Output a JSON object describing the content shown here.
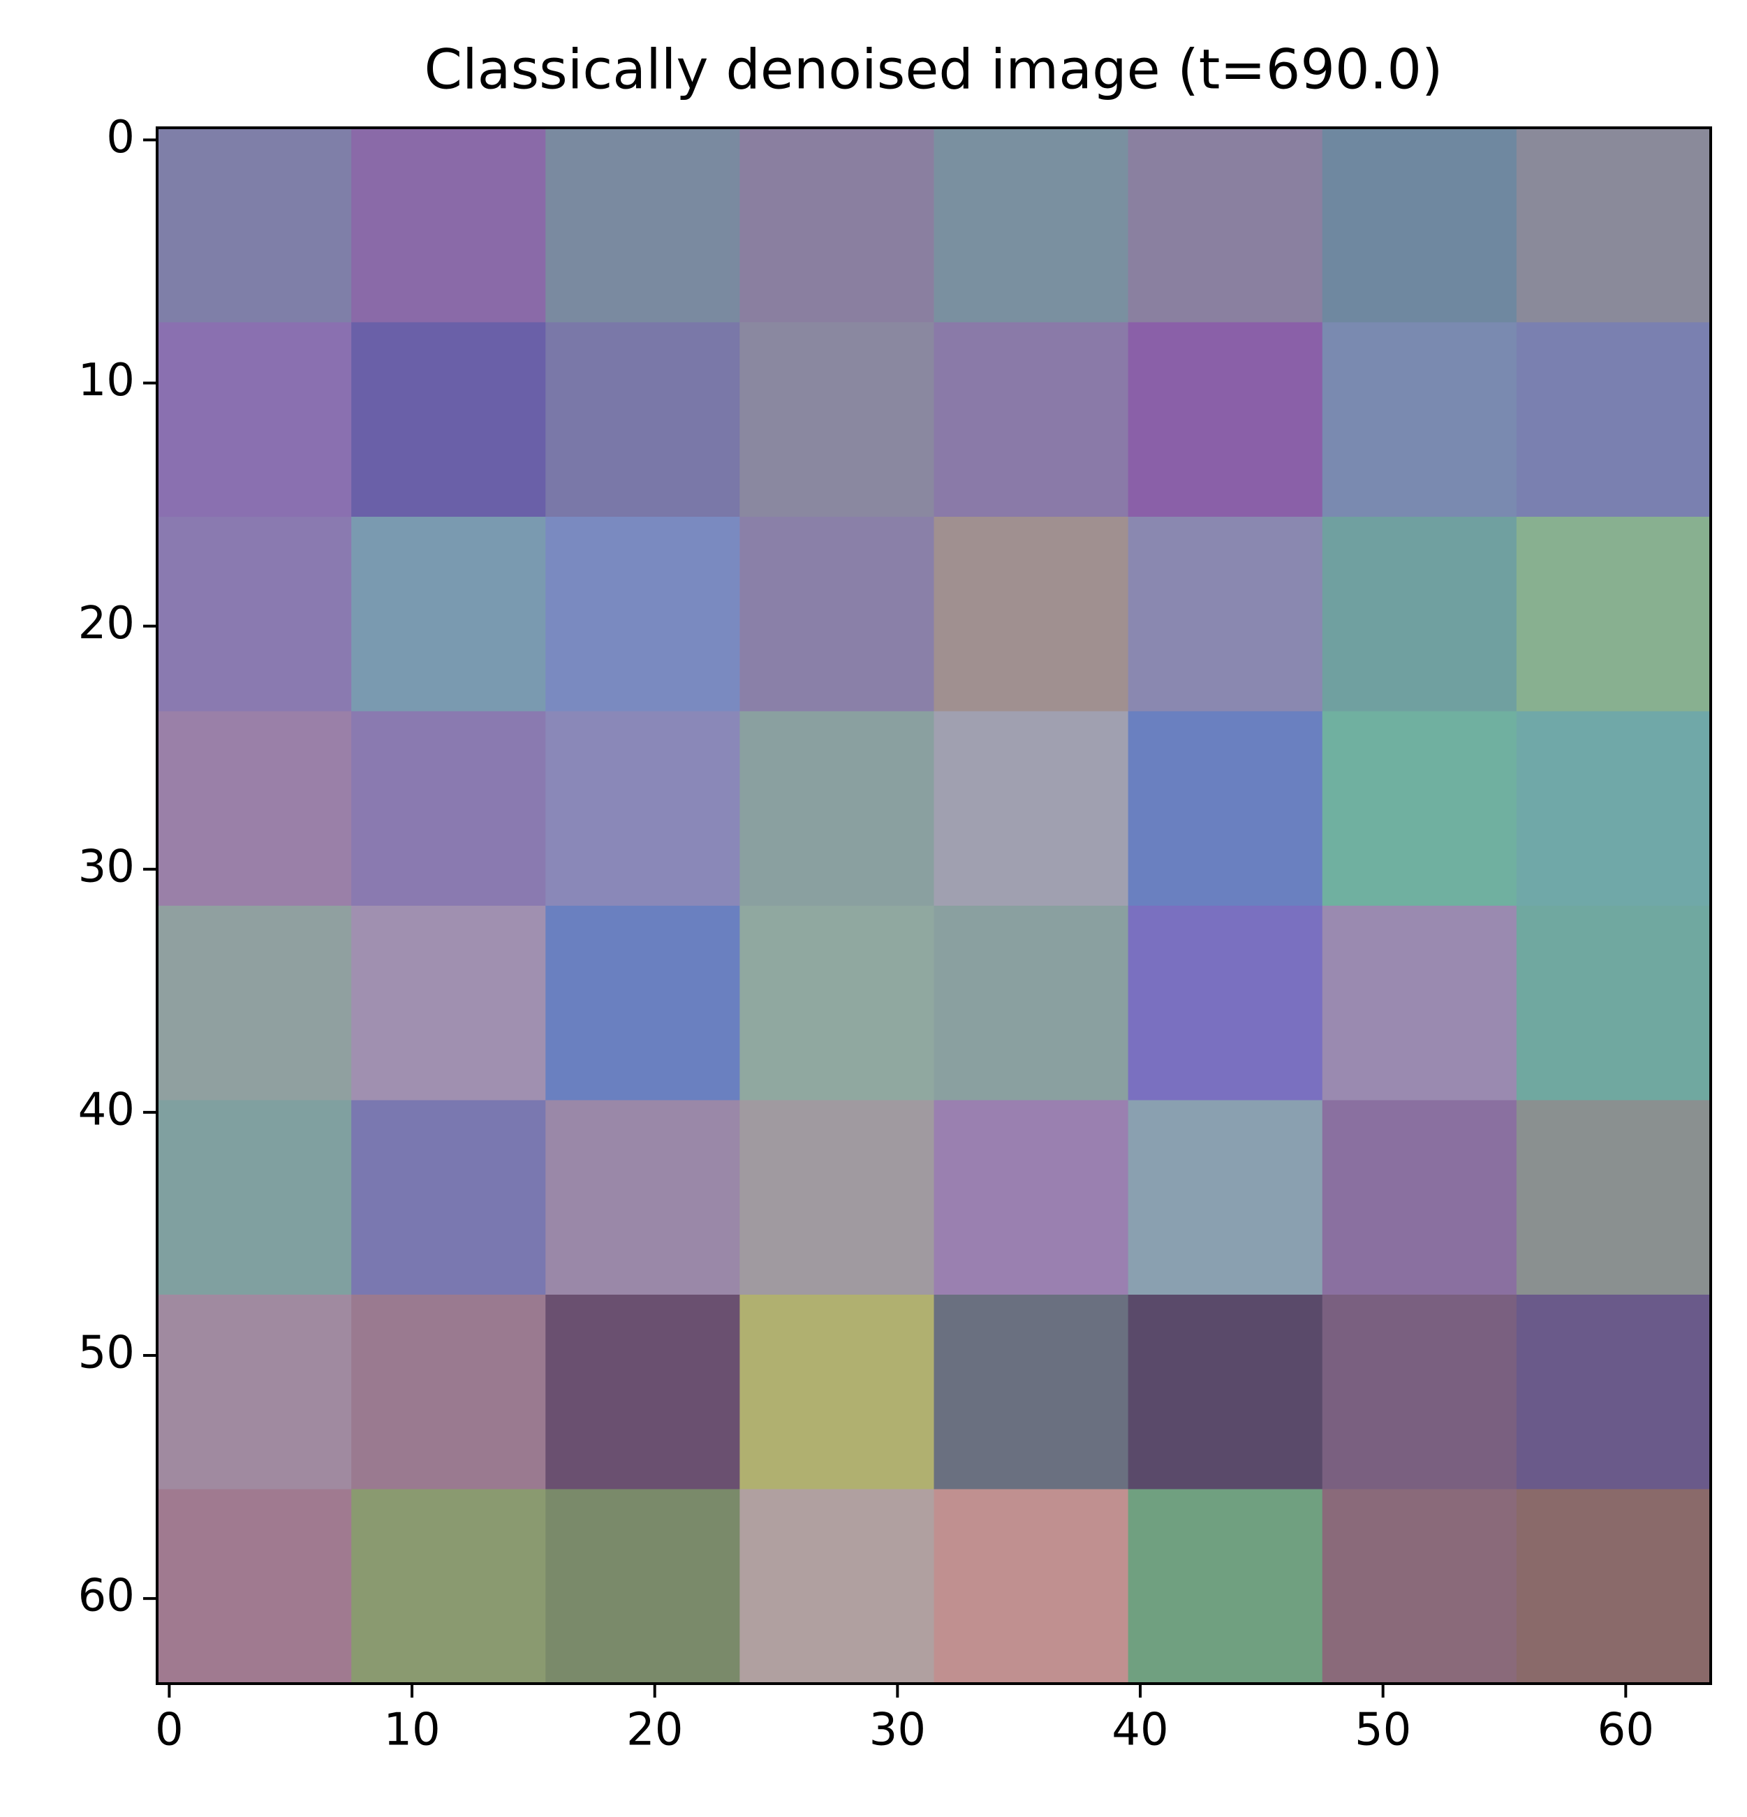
{
  "chart_data": {
    "type": "image",
    "title": "Classically denoised image (t=690.0)",
    "xlim": [
      -0.5,
      63.5
    ],
    "ylim": [
      63.5,
      -0.5
    ],
    "xticks": [
      0,
      10,
      20,
      30,
      40,
      50,
      60
    ],
    "yticks": [
      0,
      10,
      20,
      30,
      40,
      50,
      60
    ],
    "pixels": [
      [
        "#7f7fa8",
        "#8a6aa8",
        "#7a8aa0",
        "#8a7fa0",
        "#7a90a0",
        "#8a80a0",
        "#6f88a0",
        "#8a8a9a"
      ],
      [
        "#8a70b0",
        "#6a60a8",
        "#7a78a8",
        "#8a88a0",
        "#8a7aa8",
        "#8a60a8",
        "#7a8ab0",
        "#7a80b0"
      ],
      [
        "#8a7ab0",
        "#7a9ab0",
        "#7a8ac0",
        "#8a80a8",
        "#a09090",
        "#8a88b0",
        "#70a0a0",
        "#88b090"
      ],
      [
        "#9a80a8",
        "#8a7ab0",
        "#8a88b8",
        "#8aa0a0",
        "#a0a0b0",
        "#6a80c0",
        "#70b0a0",
        "#70a8a8"
      ],
      [
        "#90a0a0",
        "#a090b0",
        "#6a80c0",
        "#90a8a0",
        "#8aa0a0",
        "#7a70c0",
        "#9a8ab0",
        "#70a8a0"
      ],
      [
        "#80a0a0",
        "#7a78b0",
        "#9a88a8",
        "#a09aa0",
        "#9a80b0",
        "#8aa0b0",
        "#8a70a0",
        "#8a9090"
      ],
      [
        "#a08aa0",
        "#9a7a90",
        "#6a5070",
        "#b0b070",
        "#6a7080",
        "#5a4a6a",
        "#7a6080",
        "#6a5a8a"
      ],
      [
        "#a07a90",
        "#8a9a70",
        "#7a8a6a",
        "#b0a0a0",
        "#c09090",
        "#70a080",
        "#8a6a7a",
        "#8a6a6a"
      ]
    ]
  }
}
